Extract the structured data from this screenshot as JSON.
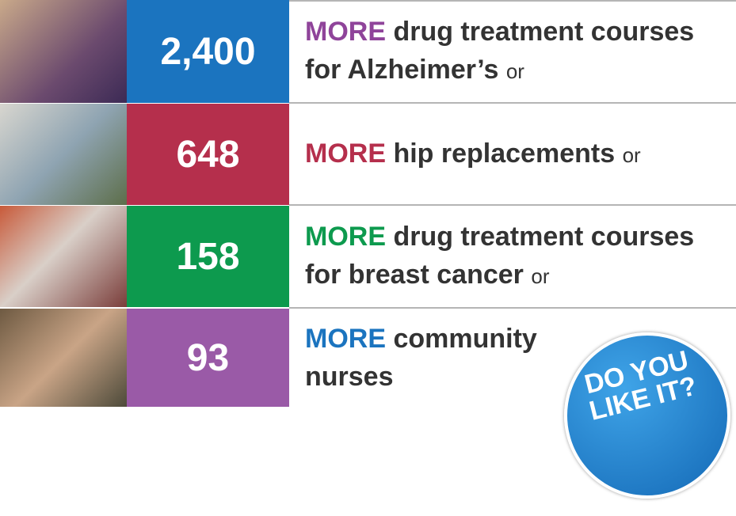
{
  "rows": [
    {
      "number": "2,400",
      "highlight": "MORE",
      "lines": [
        "drug treatment courses",
        "for Alzheimer’s"
      ],
      "suffix": "or"
    },
    {
      "number": "648",
      "highlight": "MORE",
      "lines": [
        "hip replacements"
      ],
      "suffix": "or"
    },
    {
      "number": "158",
      "highlight": "MORE",
      "lines": [
        "drug treatment courses",
        "for breast cancer"
      ],
      "suffix": "or"
    },
    {
      "number": "93",
      "highlight": "MORE",
      "lines": [
        "community",
        "nurses"
      ]
    }
  ],
  "badge": {
    "lines": [
      "DO YOU",
      "LIKE IT?"
    ]
  }
}
